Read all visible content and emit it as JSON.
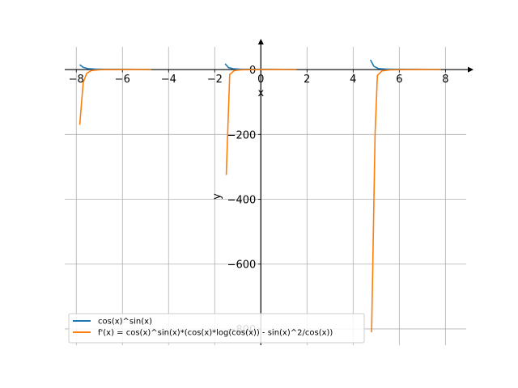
{
  "chart_data": {
    "type": "line",
    "title": "",
    "xlabel": "x",
    "ylabel": "y",
    "xlim": [
      -8.5,
      8.9
    ],
    "ylim": [
      -850,
      70
    ],
    "x_ticks": [
      -8,
      -6,
      -4,
      -2,
      0,
      2,
      4,
      6,
      8
    ],
    "x_tick_labels": [
      "−8",
      "−6",
      "−4",
      "−2",
      "0",
      "2",
      "4",
      "6",
      "8"
    ],
    "y_ticks": [
      -800,
      -600,
      -400,
      -200,
      0
    ],
    "y_tick_labels": [
      "−800",
      "−600",
      "−400",
      "−200",
      "0"
    ],
    "grid": true,
    "legend_position": "lower-left",
    "series": [
      {
        "name": "cos(x)^sin(x)",
        "color": "#1f77b4",
        "segments": [
          [
            [
              -7.85,
              15
            ],
            [
              -7.7,
              7
            ],
            [
              -7.5,
              3
            ],
            [
              -7.2,
              1.5
            ],
            [
              -6.8,
              1.1
            ],
            [
              -6.3,
              1
            ],
            [
              -5.8,
              0.9
            ],
            [
              -5.3,
              0.8
            ],
            [
              -4.75,
              0.3
            ]
          ],
          [
            [
              -1.55,
              18
            ],
            [
              -1.4,
              6
            ],
            [
              -1.2,
              2.5
            ],
            [
              -0.9,
              1.4
            ],
            [
              -0.5,
              1.1
            ],
            [
              0,
              1
            ],
            [
              0.5,
              0.9
            ],
            [
              1.0,
              0.8
            ],
            [
              1.55,
              0.3
            ]
          ],
          [
            [
              4.75,
              30
            ],
            [
              4.9,
              10
            ],
            [
              5.1,
              3
            ],
            [
              5.4,
              1.5
            ],
            [
              5.8,
              1.1
            ],
            [
              6.3,
              1
            ],
            [
              6.8,
              0.9
            ],
            [
              7.3,
              0.8
            ],
            [
              7.8,
              0.3
            ]
          ]
        ]
      },
      {
        "name": "f'(x) = cos(x)^sin(x)*(cos(x)*log(cos(x)) - sin(x)^2/cos(x))",
        "color": "#ff7f0e",
        "segments": [
          [
            [
              -7.85,
              -170
            ],
            [
              -7.7,
              -40
            ],
            [
              -7.55,
              -12
            ],
            [
              -7.35,
              -3
            ],
            [
              -7.0,
              -0.5
            ],
            [
              -6.3,
              0.1
            ],
            [
              -5.6,
              0.3
            ],
            [
              -4.75,
              0.2
            ]
          ],
          [
            [
              -1.5,
              -325
            ],
            [
              -1.35,
              -15
            ],
            [
              -1.15,
              -3
            ],
            [
              -0.9,
              -1
            ],
            [
              -0.5,
              -0.3
            ],
            [
              0,
              0
            ],
            [
              0.6,
              0.3
            ],
            [
              1.55,
              0.2
            ]
          ],
          [
            [
              4.8,
              -810
            ],
            [
              4.95,
              -200
            ],
            [
              5.05,
              -18
            ],
            [
              5.25,
              -4
            ],
            [
              5.6,
              -1
            ],
            [
              6.3,
              0
            ],
            [
              7.0,
              0.3
            ],
            [
              7.8,
              0.2
            ]
          ]
        ]
      }
    ]
  }
}
